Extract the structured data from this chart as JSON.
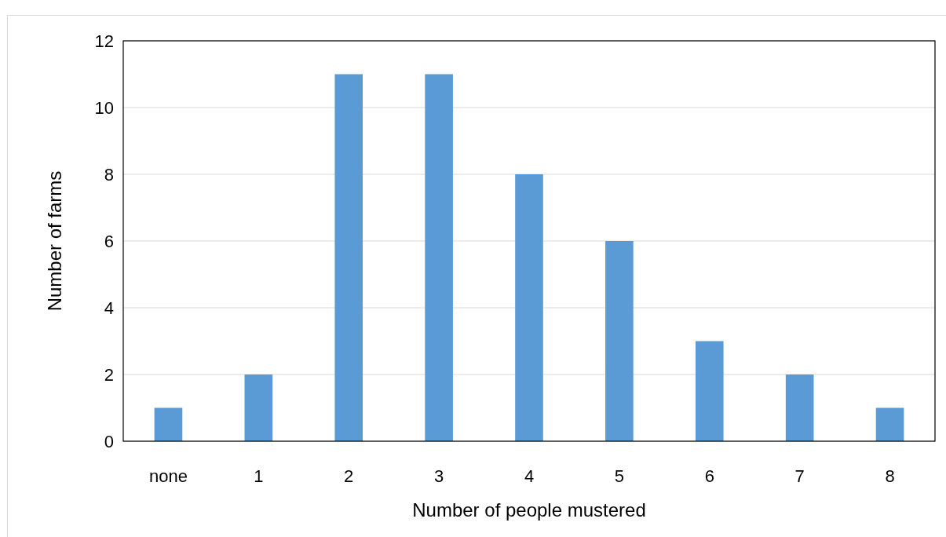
{
  "chart_data": {
    "type": "bar",
    "xlabel": "Number of people mustered",
    "ylabel": "Number of farms",
    "categories": [
      "none",
      "1",
      "2",
      "3",
      "4",
      "5",
      "6",
      "7",
      "8"
    ],
    "values": [
      1,
      2,
      11,
      11,
      8,
      6,
      3,
      2,
      1
    ],
    "color": "#5b9bd5",
    "ylim": [
      0,
      12
    ],
    "yticks": [
      0,
      2,
      4,
      6,
      8,
      10,
      12
    ],
    "grid": "y"
  }
}
